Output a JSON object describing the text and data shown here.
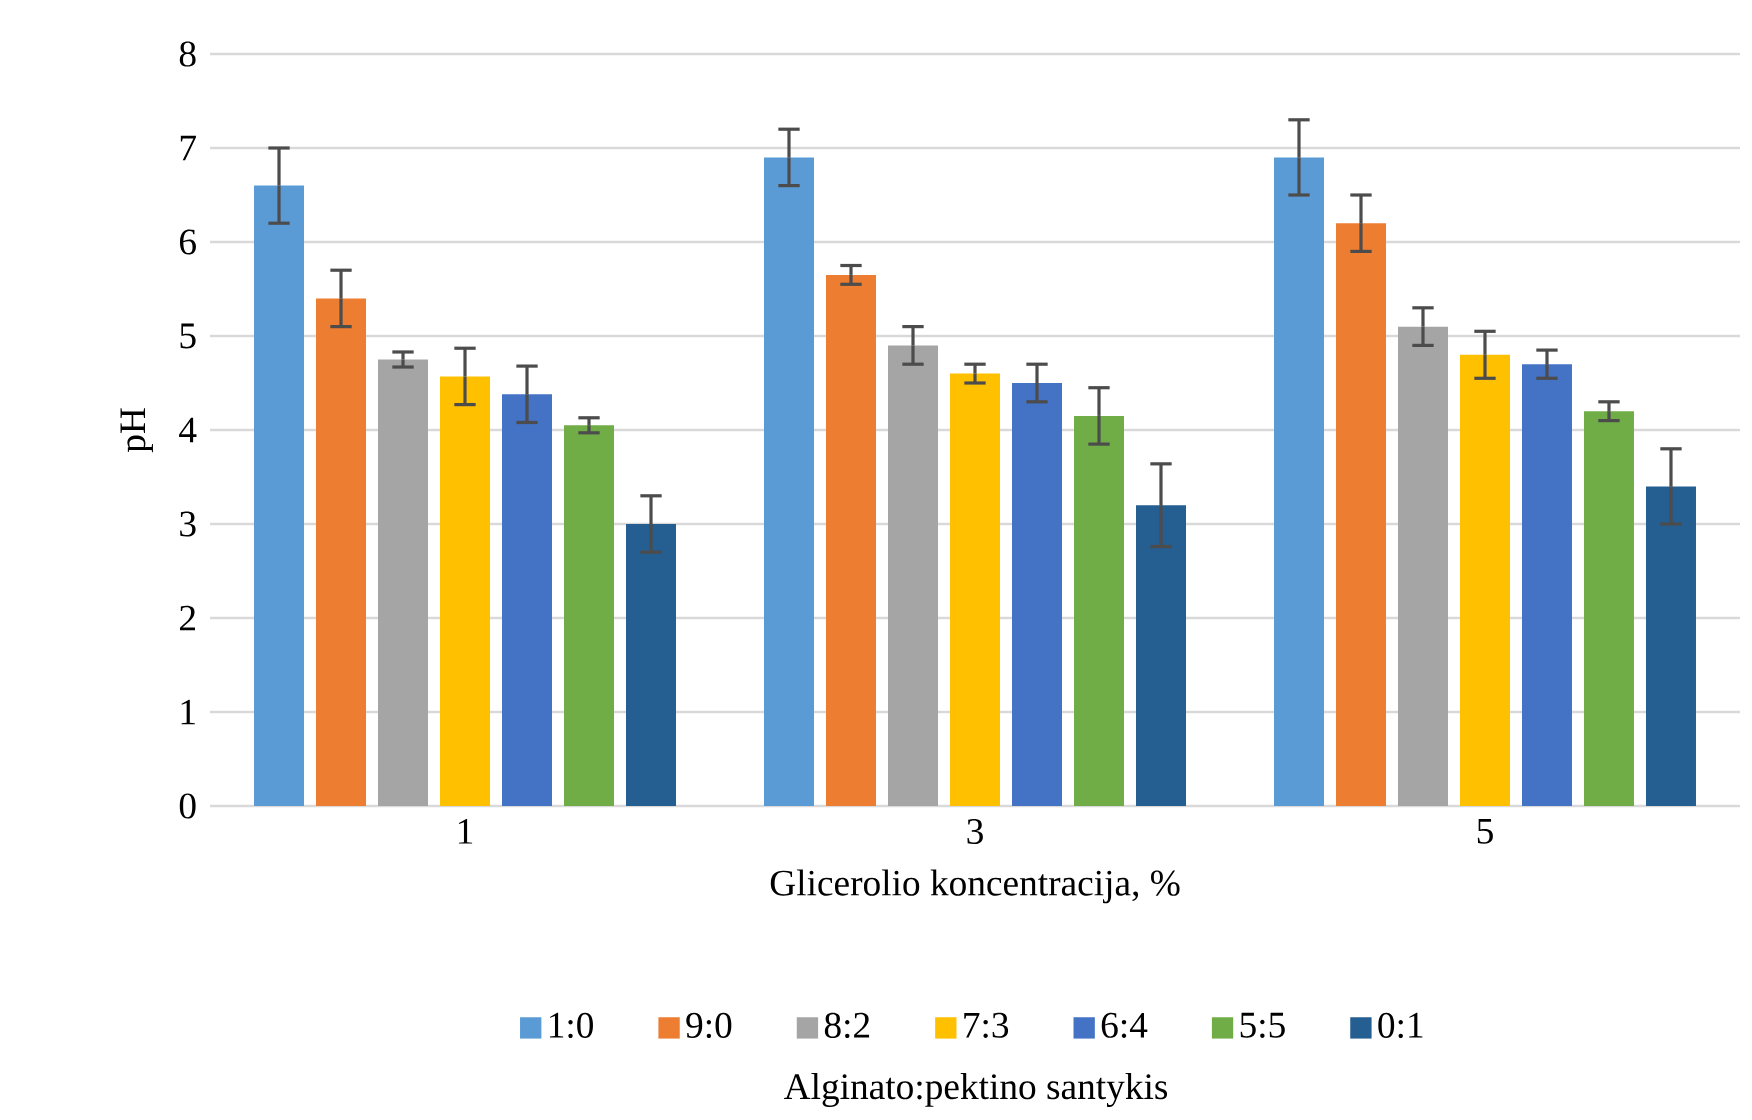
{
  "chart_data": {
    "type": "bar",
    "xlabel": "Glicerolio koncentracija, %",
    "ylabel": "pH",
    "legend_title": "Alginato:pektino santykis",
    "categories": [
      "1",
      "3",
      "5"
    ],
    "series": [
      {
        "name": "1:0",
        "color": "#5b9bd5",
        "values": [
          6.6,
          6.9,
          6.9
        ],
        "errors": [
          0.4,
          0.3,
          0.4
        ]
      },
      {
        "name": "9:0",
        "color": "#ed7d31",
        "values": [
          5.4,
          5.65,
          6.2
        ],
        "errors": [
          0.3,
          0.1,
          0.3
        ]
      },
      {
        "name": "8:2",
        "color": "#a5a5a5",
        "values": [
          4.75,
          4.9,
          5.1
        ],
        "errors": [
          0.08,
          0.2,
          0.2
        ]
      },
      {
        "name": "7:3",
        "color": "#ffc000",
        "values": [
          4.57,
          4.6,
          4.8
        ],
        "errors": [
          0.3,
          0.1,
          0.25
        ]
      },
      {
        "name": "6:4",
        "color": "#4472c4",
        "values": [
          4.38,
          4.5,
          4.7
        ],
        "errors": [
          0.3,
          0.2,
          0.15
        ]
      },
      {
        "name": "5:5",
        "color": "#70ad47",
        "values": [
          4.05,
          4.15,
          4.2
        ],
        "errors": [
          0.08,
          0.3,
          0.1
        ]
      },
      {
        "name": "0:1",
        "color": "#255e91",
        "values": [
          3.0,
          3.2,
          3.4
        ],
        "errors": [
          0.3,
          0.44,
          0.4
        ]
      }
    ],
    "ylim": [
      0,
      8
    ],
    "yticks": [
      0,
      1,
      2,
      3,
      4,
      5,
      6,
      7,
      8
    ],
    "grid": "y",
    "legend": "bottom"
  }
}
